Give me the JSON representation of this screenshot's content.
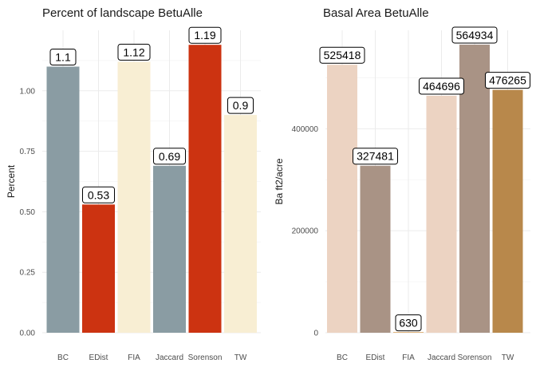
{
  "chart_data": [
    {
      "type": "bar",
      "title": "Percent of landscape  BetuAlle",
      "xlabel": "",
      "ylabel": "Percent",
      "categories": [
        "BC",
        "EDist",
        "FIA",
        "Jaccard",
        "Sorenson",
        "TW"
      ],
      "values": [
        1.1,
        0.53,
        1.12,
        0.69,
        1.19,
        0.9
      ],
      "data_labels": [
        "1.1",
        "0.53",
        "1.12",
        "0.69",
        "1.19",
        "0.9"
      ],
      "colors": [
        "#8a9ca3",
        "#cc3311",
        "#f8eed3",
        "#8a9ca3",
        "#cc3311",
        "#f8eed3"
      ],
      "yticks": [
        0,
        0.25,
        0.5,
        0.75,
        1.0
      ],
      "ytick_labels": [
        "0.00",
        "0.25",
        "0.50",
        "0.75",
        "1.00"
      ],
      "ylim": [
        0,
        1.25
      ],
      "grid": true,
      "legend": "none"
    },
    {
      "type": "bar",
      "title": "Basal Area  BetuAlle",
      "xlabel": "",
      "ylabel": "Ba ft2/acre",
      "categories": [
        "BC",
        "EDist",
        "FIA",
        "Jaccard",
        "Sorenson",
        "TW"
      ],
      "values": [
        525418,
        327481,
        630,
        464696,
        564934,
        476265
      ],
      "data_labels": [
        "525418",
        "327481",
        "630",
        "464696",
        "564934",
        "476265"
      ],
      "colors": [
        "#ecd3c2",
        "#a99385",
        "#d9a25f",
        "#ecd3c2",
        "#a99385",
        "#b8884b"
      ],
      "yticks": [
        0,
        200000,
        400000
      ],
      "ytick_labels": [
        "0",
        "200000",
        "400000"
      ],
      "ylim": [
        0,
        593000
      ],
      "grid": true,
      "legend": "none"
    }
  ]
}
